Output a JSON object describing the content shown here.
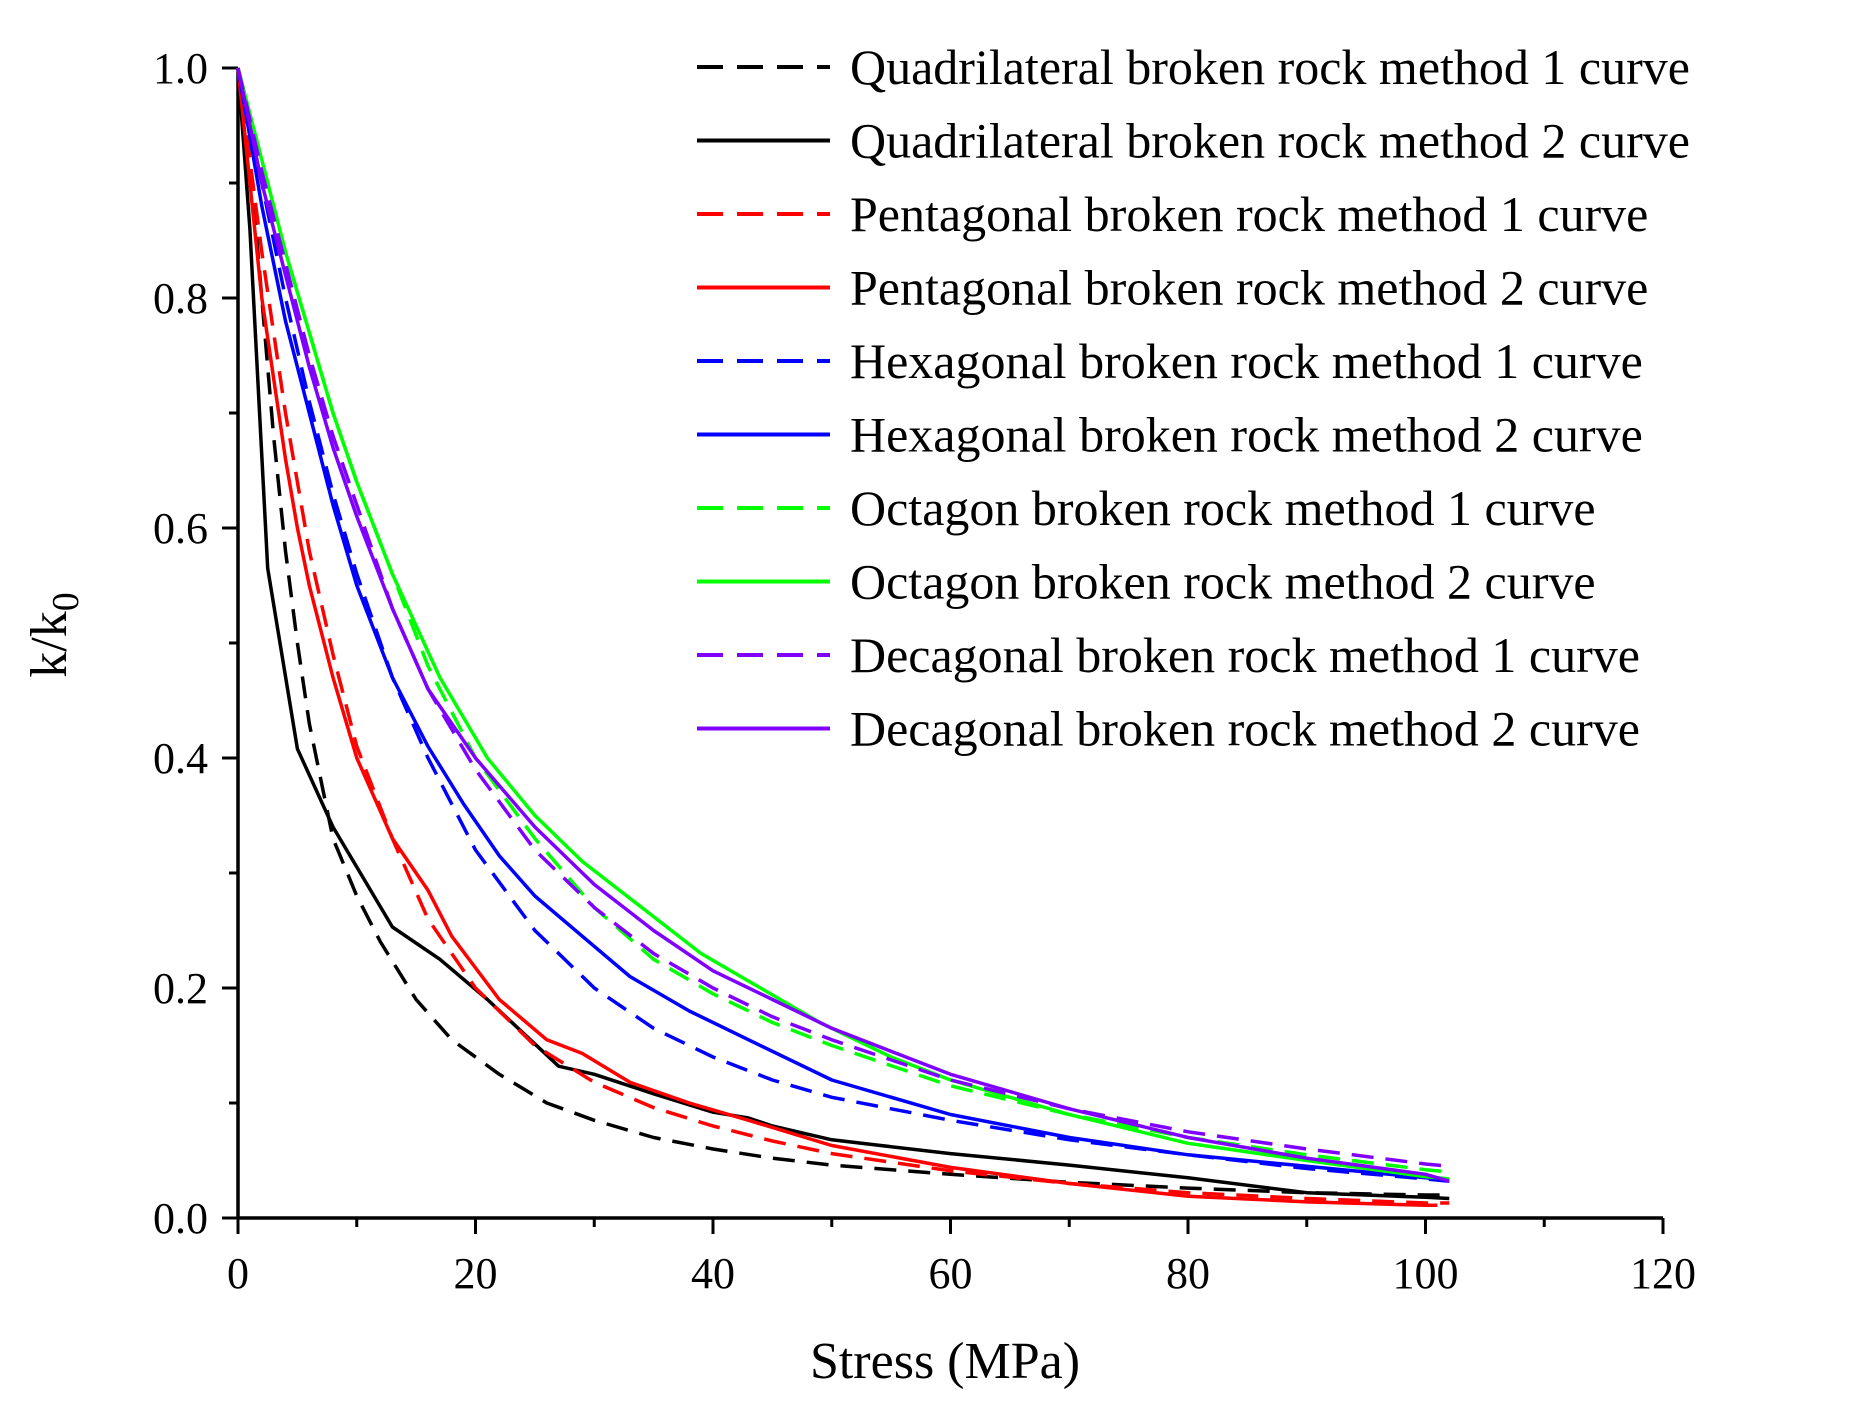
{
  "chart_data": {
    "type": "line",
    "title": "",
    "xlabel": "Stress (MPa)",
    "ylabel_main": "k/k",
    "ylabel_sub": "0",
    "xlim": [
      0,
      120
    ],
    "ylim": [
      0,
      1.0
    ],
    "x_major_ticks": [
      0,
      20,
      40,
      60,
      80,
      100,
      120
    ],
    "x_tick_labels": [
      "0",
      "20",
      "40",
      "60",
      "80",
      "100",
      "120"
    ],
    "y_major_ticks": [
      0,
      0.2,
      0.4,
      0.6,
      0.8,
      1.0
    ],
    "y_tick_labels": [
      "0.0",
      "0.2",
      "0.4",
      "0.6",
      "0.8",
      "1.0"
    ],
    "grid": false,
    "legend_position": "top-right",
    "series": [
      {
        "name": "Quadrilateral broken rock method 1 curve",
        "color": "#000000",
        "dash": true,
        "x": [
          0,
          1,
          2,
          3,
          4,
          5,
          6,
          7,
          8,
          10,
          12,
          15,
          18,
          22,
          26,
          30,
          35,
          40,
          45,
          50,
          60,
          70,
          80,
          90,
          100,
          102
        ],
        "y": [
          1.0,
          0.92,
          0.8,
          0.68,
          0.58,
          0.5,
          0.43,
          0.38,
          0.33,
          0.28,
          0.24,
          0.19,
          0.155,
          0.125,
          0.1,
          0.085,
          0.07,
          0.06,
          0.052,
          0.046,
          0.038,
          0.031,
          0.026,
          0.022,
          0.02,
          0.02
        ]
      },
      {
        "name": "Quadrilateral broken rock method 2 curve",
        "color": "#000000",
        "dash": false,
        "x": [
          0,
          1,
          2.5,
          5,
          8,
          13,
          17,
          21,
          27,
          30,
          35,
          40,
          43,
          45,
          50,
          60,
          70,
          80,
          90,
          100,
          102
        ],
        "y": [
          1.0,
          0.86,
          0.565,
          0.408,
          0.34,
          0.253,
          0.225,
          0.19,
          0.132,
          0.125,
          0.108,
          0.092,
          0.087,
          0.08,
          0.068,
          0.056,
          0.046,
          0.035,
          0.022,
          0.018,
          0.017
        ]
      },
      {
        "name": "Pentagonal broken rock method 1 curve",
        "color": "#ff0000",
        "dash": true,
        "x": [
          0,
          1,
          2,
          3,
          4,
          5,
          6,
          8,
          10,
          13,
          16,
          20,
          25,
          30,
          35,
          40,
          45,
          50,
          60,
          70,
          80,
          90,
          100,
          102
        ],
        "y": [
          1.0,
          0.92,
          0.84,
          0.77,
          0.7,
          0.64,
          0.58,
          0.49,
          0.41,
          0.33,
          0.26,
          0.2,
          0.15,
          0.118,
          0.096,
          0.08,
          0.067,
          0.056,
          0.041,
          0.03,
          0.022,
          0.017,
          0.013,
          0.013
        ]
      },
      {
        "name": "Pentagonal broken rock method 2 curve",
        "color": "#ff0000",
        "dash": false,
        "x": [
          0,
          1,
          2,
          4,
          5,
          6,
          8,
          10,
          13,
          16,
          18,
          22,
          26,
          29,
          33,
          38,
          43,
          50,
          60,
          70,
          80,
          90,
          100,
          101
        ],
        "y": [
          1.0,
          0.9,
          0.8,
          0.66,
          0.6,
          0.55,
          0.47,
          0.4,
          0.33,
          0.285,
          0.245,
          0.19,
          0.155,
          0.143,
          0.118,
          0.1,
          0.085,
          0.063,
          0.044,
          0.03,
          0.019,
          0.014,
          0.011,
          0.011
        ]
      },
      {
        "name": "Hexagonal broken rock method 1 curve",
        "color": "#0000ff",
        "dash": true,
        "x": [
          0,
          1,
          2,
          4,
          6,
          8,
          10,
          13,
          16,
          20,
          25,
          30,
          35,
          40,
          45,
          50,
          60,
          70,
          80,
          90,
          100,
          102
        ],
        "y": [
          1.0,
          0.95,
          0.9,
          0.8,
          0.71,
          0.63,
          0.56,
          0.47,
          0.4,
          0.32,
          0.25,
          0.2,
          0.165,
          0.14,
          0.12,
          0.105,
          0.085,
          0.068,
          0.055,
          0.043,
          0.034,
          0.032
        ]
      },
      {
        "name": "Hexagonal broken rock method 2 curve",
        "color": "#0000ff",
        "dash": false,
        "x": [
          0,
          2,
          4,
          6,
          8,
          10,
          13,
          16,
          19,
          22,
          25,
          29,
          33,
          38,
          43,
          50,
          60,
          70,
          80,
          90,
          100,
          102
        ],
        "y": [
          1.0,
          0.88,
          0.78,
          0.7,
          0.62,
          0.55,
          0.47,
          0.41,
          0.36,
          0.315,
          0.28,
          0.245,
          0.21,
          0.18,
          0.155,
          0.12,
          0.09,
          0.07,
          0.055,
          0.045,
          0.035,
          0.033
        ]
      },
      {
        "name": "Octagon broken rock method 1 curve",
        "color": "#00ff00",
        "dash": true,
        "x": [
          0,
          2,
          4,
          6,
          8,
          10,
          13,
          16,
          20,
          25,
          30,
          35,
          40,
          45,
          50,
          60,
          70,
          80,
          90,
          100,
          102
        ],
        "y": [
          1.0,
          0.92,
          0.84,
          0.77,
          0.7,
          0.64,
          0.56,
          0.48,
          0.4,
          0.33,
          0.27,
          0.225,
          0.195,
          0.17,
          0.15,
          0.115,
          0.09,
          0.07,
          0.055,
          0.042,
          0.04
        ]
      },
      {
        "name": "Octagon broken rock method 2 curve",
        "color": "#00ff00",
        "dash": false,
        "x": [
          0,
          2,
          4,
          6,
          8,
          10,
          13,
          17,
          21,
          25,
          29,
          34,
          39,
          44,
          49,
          55,
          60,
          70,
          80,
          90,
          100,
          102
        ],
        "y": [
          1.0,
          0.92,
          0.84,
          0.77,
          0.7,
          0.64,
          0.56,
          0.47,
          0.4,
          0.35,
          0.31,
          0.27,
          0.23,
          0.2,
          0.17,
          0.14,
          0.12,
          0.09,
          0.065,
          0.05,
          0.036,
          0.034
        ]
      },
      {
        "name": "Decagonal broken rock method 1 curve",
        "color": "#8000ff",
        "dash": true,
        "x": [
          0,
          2,
          4,
          6,
          8,
          10,
          13,
          16,
          20,
          25,
          30,
          35,
          40,
          45,
          50,
          60,
          70,
          80,
          90,
          100,
          102
        ],
        "y": [
          1.0,
          0.91,
          0.83,
          0.75,
          0.68,
          0.62,
          0.53,
          0.46,
          0.39,
          0.32,
          0.27,
          0.23,
          0.2,
          0.175,
          0.155,
          0.12,
          0.095,
          0.075,
          0.06,
          0.047,
          0.045
        ]
      },
      {
        "name": "Decagonal broken rock method 2 curve",
        "color": "#8000ff",
        "dash": false,
        "x": [
          0,
          2,
          4,
          6,
          8,
          10,
          13,
          16,
          20,
          25,
          30,
          35,
          40,
          45,
          50,
          60,
          70,
          80,
          90,
          100,
          102
        ],
        "y": [
          1.0,
          0.9,
          0.82,
          0.74,
          0.67,
          0.61,
          0.53,
          0.46,
          0.4,
          0.34,
          0.29,
          0.25,
          0.215,
          0.19,
          0.165,
          0.125,
          0.095,
          0.07,
          0.052,
          0.038,
          0.032
        ]
      }
    ]
  }
}
